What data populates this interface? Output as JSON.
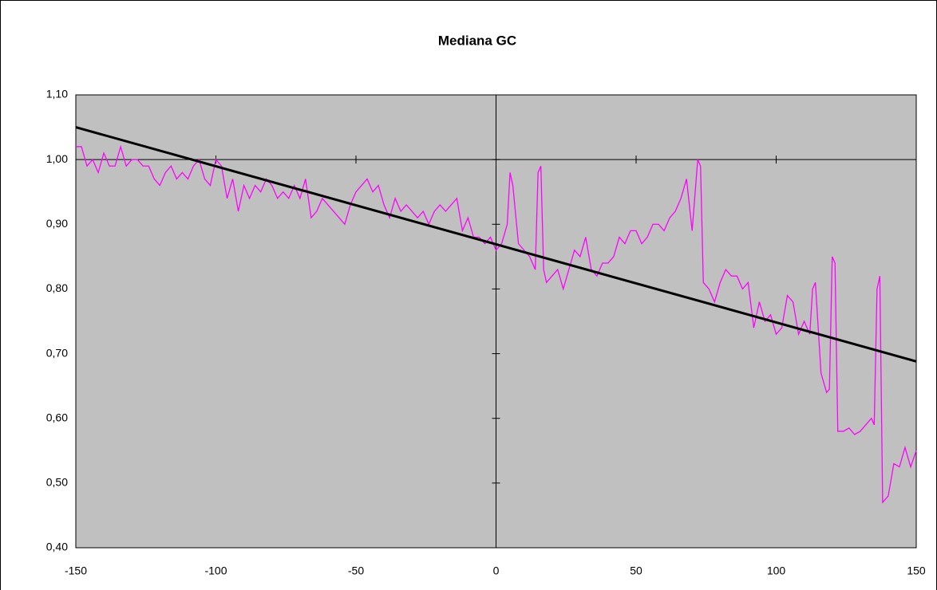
{
  "chart_data": {
    "type": "line",
    "title": "Mediana GC",
    "xlim": [
      -150,
      150
    ],
    "xticks": [
      -150,
      -100,
      -50,
      0,
      50,
      100,
      150
    ],
    "ylim": [
      0.4,
      1.1
    ],
    "yticks": [
      {
        "value": 0.4,
        "label": "0,40"
      },
      {
        "value": 0.5,
        "label": "0,50"
      },
      {
        "value": 0.6,
        "label": "0,60"
      },
      {
        "value": 0.7,
        "label": "0,70"
      },
      {
        "value": 0.8,
        "label": "0,80"
      },
      {
        "value": 0.9,
        "label": "0,90"
      },
      {
        "value": 1.0,
        "label": "1,00"
      },
      {
        "value": 1.1,
        "label": "1,10"
      }
    ],
    "x_axis_crosses_y": 1.0,
    "y_axis_crosses_x": 0,
    "plot_background": "#c0c0c0",
    "series": [
      {
        "color": "#ff00ff",
        "x": [
          -150,
          -148,
          -146,
          -144,
          -142,
          -140,
          -138,
          -136,
          -134,
          -132,
          -130,
          -128,
          -126,
          -124,
          -122,
          -120,
          -118,
          -116,
          -114,
          -112,
          -110,
          -108,
          -106,
          -104,
          -102,
          -100,
          -98,
          -96,
          -94,
          -92,
          -90,
          -88,
          -86,
          -84,
          -82,
          -80,
          -78,
          -76,
          -74,
          -72,
          -70,
          -68,
          -66,
          -64,
          -62,
          -60,
          -58,
          -56,
          -54,
          -52,
          -50,
          -48,
          -46,
          -44,
          -42,
          -40,
          -38,
          -36,
          -34,
          -32,
          -30,
          -28,
          -26,
          -24,
          -22,
          -20,
          -18,
          -16,
          -14,
          -12,
          -10,
          -8,
          -6,
          -4,
          -2,
          0,
          2,
          4,
          5,
          6,
          8,
          10,
          12,
          14,
          15,
          16,
          17,
          18,
          20,
          22,
          24,
          26,
          28,
          30,
          32,
          34,
          36,
          38,
          40,
          42,
          44,
          46,
          48,
          50,
          52,
          54,
          56,
          58,
          60,
          62,
          64,
          66,
          68,
          70,
          72,
          73,
          74,
          76,
          78,
          80,
          82,
          84,
          86,
          88,
          90,
          92,
          94,
          96,
          98,
          100,
          102,
          104,
          106,
          108,
          110,
          112,
          113,
          114,
          116,
          118,
          119,
          120,
          121,
          122,
          124,
          126,
          128,
          130,
          132,
          134,
          135,
          136,
          137,
          138,
          140,
          142,
          144,
          146,
          148,
          150
        ],
        "values": [
          1.02,
          1.02,
          0.99,
          1.0,
          0.98,
          1.01,
          0.99,
          0.99,
          1.02,
          0.99,
          1.0,
          1.0,
          0.99,
          0.99,
          0.97,
          0.96,
          0.98,
          0.99,
          0.97,
          0.98,
          0.97,
          0.99,
          1.0,
          0.97,
          0.96,
          1.0,
          0.99,
          0.94,
          0.97,
          0.92,
          0.96,
          0.94,
          0.96,
          0.95,
          0.97,
          0.96,
          0.94,
          0.95,
          0.94,
          0.96,
          0.94,
          0.97,
          0.91,
          0.92,
          0.94,
          0.93,
          0.92,
          0.91,
          0.9,
          0.93,
          0.95,
          0.96,
          0.97,
          0.95,
          0.96,
          0.93,
          0.91,
          0.94,
          0.92,
          0.93,
          0.92,
          0.91,
          0.92,
          0.9,
          0.92,
          0.93,
          0.92,
          0.93,
          0.94,
          0.89,
          0.91,
          0.88,
          0.88,
          0.87,
          0.88,
          0.86,
          0.87,
          0.9,
          0.98,
          0.96,
          0.87,
          0.86,
          0.85,
          0.83,
          0.98,
          0.99,
          0.83,
          0.81,
          0.82,
          0.83,
          0.8,
          0.83,
          0.86,
          0.85,
          0.88,
          0.83,
          0.82,
          0.84,
          0.84,
          0.85,
          0.88,
          0.87,
          0.89,
          0.89,
          0.87,
          0.88,
          0.9,
          0.9,
          0.89,
          0.91,
          0.92,
          0.94,
          0.97,
          0.89,
          1.0,
          0.99,
          0.81,
          0.8,
          0.78,
          0.81,
          0.83,
          0.82,
          0.82,
          0.8,
          0.81,
          0.74,
          0.78,
          0.75,
          0.76,
          0.73,
          0.74,
          0.79,
          0.78,
          0.73,
          0.75,
          0.73,
          0.8,
          0.81,
          0.67,
          0.64,
          0.645,
          0.85,
          0.84,
          0.58,
          0.58,
          0.585,
          0.575,
          0.58,
          0.59,
          0.6,
          0.59,
          0.8,
          0.82,
          0.47,
          0.48,
          0.53,
          0.525,
          0.555,
          0.525,
          0.55
        ]
      },
      {
        "color": "#000000",
        "x": [
          -150,
          150
        ],
        "values": [
          1.05,
          0.688
        ]
      }
    ]
  }
}
